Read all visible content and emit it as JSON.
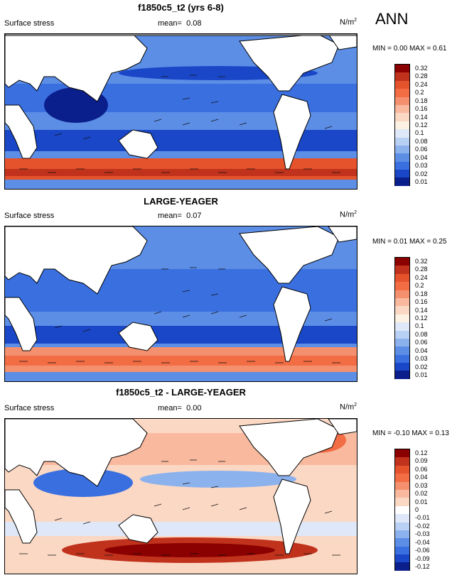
{
  "season": "ANN",
  "colors": {
    "land": "#ffffff",
    "coast": "#000000",
    "arrow": "#111111"
  },
  "panels": [
    {
      "title": "f1850c5_t2 (yrs 6-8)",
      "variable": "Surface stress",
      "mean_label": "mean=",
      "mean": "0.08",
      "units": "N/m",
      "units_sup": "2",
      "minmax": "MIN =  0.00 MAX =  0.61",
      "levels": [
        "0.32",
        "0.28",
        "0.24",
        "0.2",
        "0.18",
        "0.16",
        "0.14",
        "0.12",
        "0.1",
        "0.08",
        "0.06",
        "0.04",
        "0.03",
        "0.02",
        "0.01"
      ],
      "colors": [
        "#8b0000",
        "#c0321c",
        "#e5532d",
        "#f26c44",
        "#f4906e",
        "#f8b99e",
        "#fbd8c4",
        "#fdf1e4",
        "#dfe8f8",
        "#b8d0f3",
        "#8cb2ee",
        "#5c8ee6",
        "#3a6fe0",
        "#1a47c8",
        "#0b1f8c"
      ]
    },
    {
      "title": "LARGE-YEAGER",
      "variable": "Surface stress",
      "mean_label": "mean=",
      "mean": "0.07",
      "units": "N/m",
      "units_sup": "2",
      "minmax": "MIN =  0.01 MAX =  0.25",
      "levels": [
        "0.32",
        "0.28",
        "0.24",
        "0.2",
        "0.18",
        "0.16",
        "0.14",
        "0.12",
        "0.1",
        "0.08",
        "0.06",
        "0.04",
        "0.03",
        "0.02",
        "0.01"
      ],
      "colors": [
        "#8b0000",
        "#c0321c",
        "#e5532d",
        "#f26c44",
        "#f4906e",
        "#f8b99e",
        "#fbd8c4",
        "#fdf1e4",
        "#dfe8f8",
        "#b8d0f3",
        "#8cb2ee",
        "#5c8ee6",
        "#3a6fe0",
        "#1a47c8",
        "#0b1f8c"
      ]
    },
    {
      "title": "f1850c5_t2 - LARGE-YEAGER",
      "variable": "Surface stress",
      "mean_label": "mean=",
      "mean": "0.00",
      "units": "N/m",
      "units_sup": "2",
      "minmax": "MIN = -0.10 MAX =  0.13",
      "levels": [
        "0.12",
        "0.09",
        "0.06",
        "0.04",
        "0.03",
        "0.02",
        "0.01",
        "0",
        "-0.01",
        "-0.02",
        "-0.03",
        "-0.04",
        "-0.06",
        "-0.09",
        "-0.12"
      ],
      "colors": [
        "#8b0000",
        "#c0321c",
        "#e5532d",
        "#f26c44",
        "#f4906e",
        "#f8b99e",
        "#fbd8c4",
        "#ffffff",
        "#dfe8f8",
        "#b8d0f3",
        "#8cb2ee",
        "#5c8ee6",
        "#3a6fe0",
        "#1a47c8",
        "#0b1f8c"
      ]
    }
  ]
}
